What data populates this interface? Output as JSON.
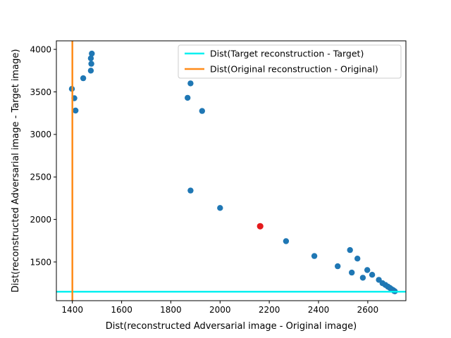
{
  "chart_data": {
    "type": "scatter",
    "xlabel": "Dist(reconstructed Adversarial image - Original image)",
    "ylabel": "Dist(reconstructed Adversarial image - Target image)",
    "xlim": [
      1335,
      2755
    ],
    "ylim": [
      1045,
      4100
    ],
    "xticks": [
      1400,
      1600,
      1800,
      2000,
      2200,
      2400,
      2600
    ],
    "yticks": [
      1500,
      2000,
      2500,
      3000,
      3500,
      4000
    ],
    "grid": false,
    "legend_position": "top-right",
    "scatter_color": "#1f77b4",
    "highlight_color": "#e41a1c",
    "points": [
      {
        "x": 1398,
        "y": 3535
      },
      {
        "x": 1408,
        "y": 3425
      },
      {
        "x": 1413,
        "y": 3280
      },
      {
        "x": 1444,
        "y": 3660
      },
      {
        "x": 1475,
        "y": 3750
      },
      {
        "x": 1477,
        "y": 3830
      },
      {
        "x": 1475,
        "y": 3895
      },
      {
        "x": 1479,
        "y": 3950
      },
      {
        "x": 1868,
        "y": 3430
      },
      {
        "x": 1880,
        "y": 3600
      },
      {
        "x": 1927,
        "y": 3275
      },
      {
        "x": 1880,
        "y": 2340
      },
      {
        "x": 2000,
        "y": 2135
      },
      {
        "x": 2268,
        "y": 1745
      },
      {
        "x": 2383,
        "y": 1570
      },
      {
        "x": 2478,
        "y": 1450
      },
      {
        "x": 2528,
        "y": 1640
      },
      {
        "x": 2535,
        "y": 1375
      },
      {
        "x": 2558,
        "y": 1540
      },
      {
        "x": 2580,
        "y": 1315
      },
      {
        "x": 2598,
        "y": 1405
      },
      {
        "x": 2618,
        "y": 1350
      },
      {
        "x": 2645,
        "y": 1290
      },
      {
        "x": 2660,
        "y": 1250
      },
      {
        "x": 2672,
        "y": 1230
      },
      {
        "x": 2682,
        "y": 1210
      },
      {
        "x": 2690,
        "y": 1195
      },
      {
        "x": 2697,
        "y": 1180
      },
      {
        "x": 2703,
        "y": 1170
      },
      {
        "x": 2707,
        "y": 1160
      },
      {
        "x": 2710,
        "y": 1155
      }
    ],
    "highlight_point": {
      "x": 2163,
      "y": 1920
    },
    "lines": [
      {
        "name": "Dist(Target reconstruction - Target)",
        "orientation": "horizontal",
        "value": 1150,
        "color": "#00f0f0"
      },
      {
        "name": "Dist(Original reconstruction - Original)",
        "orientation": "vertical",
        "value": 1400,
        "color": "#ff8c1a"
      }
    ]
  }
}
